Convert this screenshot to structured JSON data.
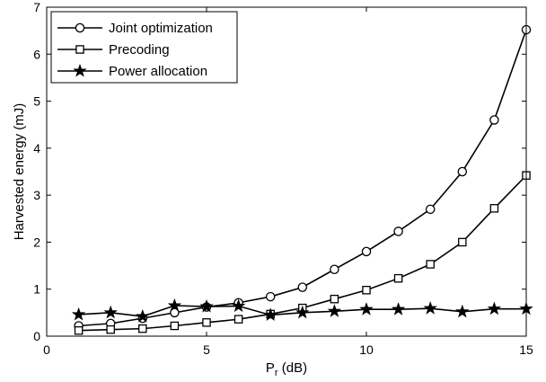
{
  "chart_data": {
    "type": "line",
    "title": "",
    "xlabel": "P",
    "xlabel_sub": "r",
    "xlabel_unit": " (dB)",
    "ylabel": "Harvested energy (mJ)",
    "xlim": [
      0,
      15
    ],
    "ylim": [
      0,
      7
    ],
    "xticks": [
      0,
      5,
      10,
      15
    ],
    "yticks": [
      0,
      1,
      2,
      3,
      4,
      5,
      6,
      7
    ],
    "grid": false,
    "legend_position": "top-left",
    "x": [
      1,
      2,
      3,
      4,
      5,
      6,
      7,
      8,
      9,
      10,
      11,
      12,
      13,
      14,
      15
    ],
    "series": [
      {
        "name": "Joint optimization",
        "marker": "circle",
        "values": [
          0.22,
          0.27,
          0.38,
          0.5,
          0.62,
          0.71,
          0.84,
          1.04,
          1.42,
          1.8,
          2.23,
          2.7,
          3.5,
          4.6,
          6.52
        ]
      },
      {
        "name": "Precoding",
        "marker": "square",
        "values": [
          0.12,
          0.14,
          0.16,
          0.22,
          0.29,
          0.36,
          0.47,
          0.6,
          0.79,
          0.98,
          1.23,
          1.53,
          2.0,
          2.72,
          3.42
        ]
      },
      {
        "name": "Power allocation",
        "marker": "star",
        "values": [
          0.46,
          0.5,
          0.42,
          0.65,
          0.63,
          0.64,
          0.45,
          0.5,
          0.53,
          0.57,
          0.57,
          0.59,
          0.52,
          0.58,
          0.58
        ]
      }
    ]
  },
  "colors": {
    "line": "#000000",
    "background": "#ffffff"
  }
}
